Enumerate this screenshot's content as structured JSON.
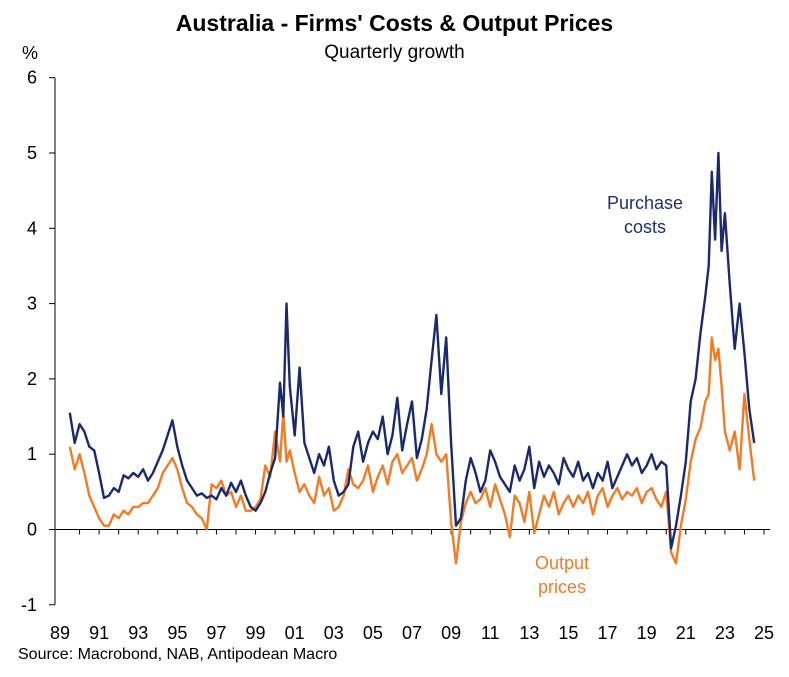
{
  "chart_data": {
    "type": "line",
    "title": "Australia - Firms' Costs & Output Prices",
    "subtitle": "Quarterly growth",
    "ylabel": "%",
    "ylim": [
      -1,
      6
    ],
    "xlim": [
      1989,
      2025.5
    ],
    "yticks": [
      "-1",
      "0",
      "1",
      "2",
      "3",
      "4",
      "5",
      "6"
    ],
    "xticks": [
      "89",
      "91",
      "93",
      "95",
      "97",
      "99",
      "01",
      "03",
      "05",
      "07",
      "09",
      "11",
      "13",
      "15",
      "17",
      "19",
      "21",
      "23",
      "25"
    ],
    "grid": false,
    "source": "Source: Macrobond, NAB, Antipodean Macro",
    "annotations": [
      {
        "text": [
          "Purchase",
          "costs"
        ],
        "color": "#1f2f73"
      },
      {
        "text": [
          "Output",
          "prices"
        ],
        "color": "#f07c28"
      }
    ],
    "series": [
      {
        "name": "Purchase costs",
        "color": "#1a2a6c",
        "x": [
          1989.5,
          1989.75,
          1990.0,
          1990.25,
          1990.5,
          1990.75,
          1991.0,
          1991.25,
          1991.5,
          1991.75,
          1992.0,
          1992.25,
          1992.5,
          1992.75,
          1993.0,
          1993.25,
          1993.5,
          1993.75,
          1994.0,
          1994.25,
          1994.5,
          1994.75,
          1995.0,
          1995.25,
          1995.5,
          1995.75,
          1996.0,
          1996.25,
          1996.5,
          1996.75,
          1997.0,
          1997.25,
          1997.5,
          1997.75,
          1998.0,
          1998.25,
          1998.5,
          1998.75,
          1999.0,
          1999.25,
          1999.5,
          1999.75,
          2000.0,
          2000.25,
          2000.42,
          2000.58,
          2000.75,
          2001.0,
          2001.25,
          2001.5,
          2001.75,
          2002.0,
          2002.25,
          2002.5,
          2002.75,
          2003.0,
          2003.25,
          2003.5,
          2003.75,
          2004.0,
          2004.25,
          2004.5,
          2004.75,
          2005.0,
          2005.25,
          2005.5,
          2005.75,
          2006.0,
          2006.25,
          2006.5,
          2006.75,
          2007.0,
          2007.25,
          2007.5,
          2007.75,
          2008.0,
          2008.25,
          2008.5,
          2008.75,
          2009.0,
          2009.25,
          2009.5,
          2009.75,
          2010.0,
          2010.25,
          2010.5,
          2010.75,
          2011.0,
          2011.25,
          2011.5,
          2011.75,
          2012.0,
          2012.25,
          2012.5,
          2012.75,
          2013.0,
          2013.25,
          2013.5,
          2013.75,
          2014.0,
          2014.25,
          2014.5,
          2014.75,
          2015.0,
          2015.25,
          2015.5,
          2015.75,
          2016.0,
          2016.25,
          2016.5,
          2016.75,
          2017.0,
          2017.25,
          2017.5,
          2017.75,
          2018.0,
          2018.25,
          2018.5,
          2018.75,
          2019.0,
          2019.25,
          2019.5,
          2019.75,
          2020.0,
          2020.25,
          2020.5,
          2020.75,
          2021.0,
          2021.25,
          2021.5,
          2021.75,
          2022.0,
          2022.17,
          2022.33,
          2022.5,
          2022.67,
          2022.83,
          2023.0,
          2023.25,
          2023.5,
          2023.75,
          2024.0,
          2024.25,
          2024.5
        ],
        "values": [
          1.55,
          1.15,
          1.4,
          1.3,
          1.1,
          1.05,
          0.75,
          0.42,
          0.45,
          0.55,
          0.5,
          0.72,
          0.68,
          0.75,
          0.7,
          0.8,
          0.65,
          0.75,
          0.9,
          1.05,
          1.25,
          1.45,
          1.1,
          0.85,
          0.65,
          0.55,
          0.45,
          0.48,
          0.42,
          0.45,
          0.4,
          0.55,
          0.45,
          0.62,
          0.5,
          0.65,
          0.45,
          0.3,
          0.25,
          0.35,
          0.5,
          0.75,
          0.95,
          1.95,
          1.5,
          3.0,
          1.9,
          1.25,
          2.15,
          1.15,
          0.95,
          0.75,
          1.0,
          0.85,
          1.1,
          0.65,
          0.45,
          0.5,
          0.6,
          1.1,
          1.3,
          0.9,
          1.15,
          1.3,
          1.2,
          1.5,
          1.0,
          1.25,
          1.75,
          1.05,
          1.4,
          1.7,
          0.95,
          1.2,
          1.6,
          2.25,
          2.85,
          1.8,
          2.55,
          1.15,
          0.05,
          0.15,
          0.65,
          0.95,
          0.75,
          0.5,
          0.65,
          1.05,
          0.9,
          0.7,
          0.6,
          0.5,
          0.85,
          0.65,
          0.8,
          1.1,
          0.55,
          0.9,
          0.7,
          0.85,
          0.75,
          0.6,
          0.95,
          0.8,
          0.7,
          0.9,
          0.65,
          0.75,
          0.55,
          0.75,
          0.65,
          0.9,
          0.55,
          0.7,
          0.85,
          1.0,
          0.85,
          0.95,
          0.75,
          0.85,
          1.0,
          0.8,
          0.9,
          0.85,
          -0.25,
          0.05,
          0.45,
          0.9,
          1.7,
          2.0,
          2.6,
          3.1,
          3.5,
          4.75,
          3.85,
          5.0,
          3.7,
          4.2,
          3.25,
          2.4,
          3.0,
          2.35,
          1.6,
          1.15
        ]
      },
      {
        "name": "Output prices",
        "color": "#f07c28",
        "x": [
          1989.5,
          1989.75,
          1990.0,
          1990.25,
          1990.5,
          1990.75,
          1991.0,
          1991.25,
          1991.5,
          1991.75,
          1992.0,
          1992.25,
          1992.5,
          1992.75,
          1993.0,
          1993.25,
          1993.5,
          1993.75,
          1994.0,
          1994.25,
          1994.5,
          1994.75,
          1995.0,
          1995.25,
          1995.5,
          1995.75,
          1996.0,
          1996.25,
          1996.5,
          1996.75,
          1997.0,
          1997.25,
          1997.5,
          1997.75,
          1998.0,
          1998.25,
          1998.5,
          1998.75,
          1999.0,
          1999.25,
          1999.5,
          1999.75,
          2000.0,
          2000.25,
          2000.42,
          2000.58,
          2000.75,
          2001.0,
          2001.25,
          2001.5,
          2001.75,
          2002.0,
          2002.25,
          2002.5,
          2002.75,
          2003.0,
          2003.25,
          2003.5,
          2003.75,
          2004.0,
          2004.25,
          2004.5,
          2004.75,
          2005.0,
          2005.25,
          2005.5,
          2005.75,
          2006.0,
          2006.25,
          2006.5,
          2006.75,
          2007.0,
          2007.25,
          2007.5,
          2007.75,
          2008.0,
          2008.25,
          2008.5,
          2008.75,
          2009.0,
          2009.25,
          2009.5,
          2009.75,
          2010.0,
          2010.25,
          2010.5,
          2010.75,
          2011.0,
          2011.25,
          2011.5,
          2011.75,
          2012.0,
          2012.25,
          2012.5,
          2012.75,
          2013.0,
          2013.25,
          2013.5,
          2013.75,
          2014.0,
          2014.25,
          2014.5,
          2014.75,
          2015.0,
          2015.25,
          2015.5,
          2015.75,
          2016.0,
          2016.25,
          2016.5,
          2016.75,
          2017.0,
          2017.25,
          2017.5,
          2017.75,
          2018.0,
          2018.25,
          2018.5,
          2018.75,
          2019.0,
          2019.25,
          2019.5,
          2019.75,
          2020.0,
          2020.25,
          2020.5,
          2020.75,
          2021.0,
          2021.25,
          2021.5,
          2021.75,
          2022.0,
          2022.17,
          2022.33,
          2022.5,
          2022.67,
          2022.83,
          2023.0,
          2023.25,
          2023.5,
          2023.75,
          2024.0,
          2024.25,
          2024.5
        ],
        "values": [
          1.1,
          0.8,
          1.0,
          0.75,
          0.45,
          0.3,
          0.15,
          0.05,
          0.05,
          0.2,
          0.15,
          0.25,
          0.2,
          0.3,
          0.3,
          0.35,
          0.35,
          0.45,
          0.55,
          0.75,
          0.85,
          0.95,
          0.8,
          0.55,
          0.35,
          0.3,
          0.2,
          0.15,
          0.0,
          0.6,
          0.55,
          0.65,
          0.45,
          0.5,
          0.3,
          0.45,
          0.25,
          0.25,
          0.3,
          0.4,
          0.85,
          0.7,
          1.3,
          0.9,
          1.55,
          0.9,
          1.05,
          0.75,
          0.5,
          0.6,
          0.45,
          0.35,
          0.7,
          0.45,
          0.55,
          0.25,
          0.3,
          0.45,
          0.8,
          0.6,
          0.55,
          0.65,
          0.85,
          0.5,
          0.7,
          0.85,
          0.6,
          0.9,
          1.0,
          0.75,
          0.85,
          0.95,
          0.65,
          0.8,
          1.0,
          1.4,
          1.0,
          0.9,
          1.0,
          0.1,
          -0.45,
          0.1,
          0.35,
          0.5,
          0.35,
          0.4,
          0.55,
          0.3,
          0.6,
          0.4,
          0.2,
          -0.1,
          0.45,
          0.35,
          0.1,
          0.5,
          -0.05,
          0.2,
          0.45,
          0.3,
          0.5,
          0.2,
          0.35,
          0.45,
          0.3,
          0.45,
          0.35,
          0.5,
          0.2,
          0.45,
          0.55,
          0.3,
          0.45,
          0.55,
          0.4,
          0.5,
          0.45,
          0.55,
          0.35,
          0.5,
          0.55,
          0.4,
          0.3,
          0.5,
          -0.3,
          -0.45,
          0.05,
          0.4,
          0.9,
          1.2,
          1.35,
          1.7,
          1.8,
          2.55,
          2.25,
          2.4,
          1.9,
          1.3,
          1.05,
          1.3,
          0.8,
          1.8,
          1.2,
          0.65
        ]
      }
    ]
  }
}
